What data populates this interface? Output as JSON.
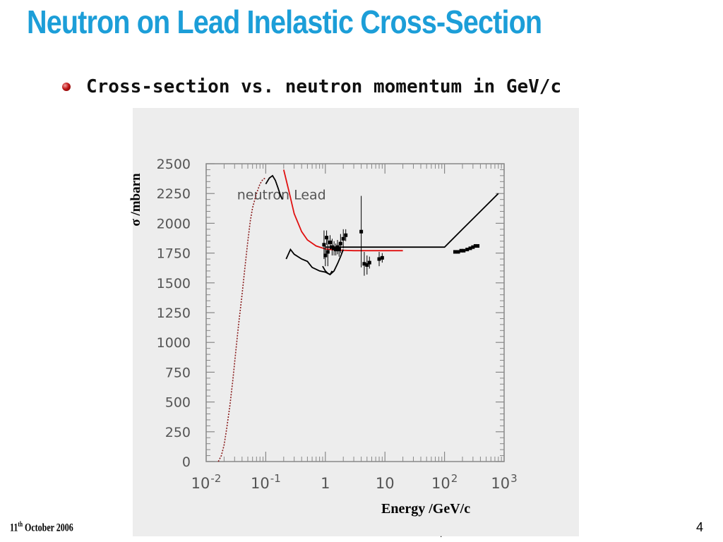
{
  "slide": {
    "title": "Neutron on Lead Inelastic Cross-Section",
    "bullet": "Cross-section vs. neutron momentum in GeV/c",
    "footer_day": "11",
    "footer_suffix": "th",
    "footer_rest": " October 2006",
    "page_number": "4",
    "stray_mark": "."
  },
  "chart_data": {
    "type": "line",
    "ylabel": "σ /mbarn",
    "xlabel": "Energy /GeV/c",
    "annotation": "neutron Lead",
    "x_scale": "log",
    "xlim": [
      0.01,
      1000
    ],
    "ylim": [
      0,
      2500
    ],
    "y_ticks": [
      "0",
      "250",
      "500",
      "750",
      "1000",
      "1250",
      "1500",
      "1750",
      "2000",
      "2250",
      "2500"
    ],
    "y_tick_values": [
      0,
      250,
      500,
      750,
      1000,
      1250,
      1500,
      1750,
      2000,
      2250,
      2500
    ],
    "x_ticks": [
      {
        "value": 0.01,
        "base": "10",
        "exp": "-2"
      },
      {
        "value": 0.1,
        "base": "10",
        "exp": "-1"
      },
      {
        "value": 1,
        "base": "1",
        "exp": ""
      },
      {
        "value": 10,
        "base": "10",
        "exp": ""
      },
      {
        "value": 100,
        "base": "10",
        "exp": "2"
      },
      {
        "value": 1000,
        "base": "10",
        "exp": "3"
      }
    ],
    "colors": {
      "red": "#e01010",
      "black": "#000000",
      "frame": "#888888",
      "tick_text": "#555555"
    },
    "series": [
      {
        "color": "#8a1c1c",
        "dashed": true,
        "points": [
          [
            0.016,
            0
          ],
          [
            0.018,
            50
          ],
          [
            0.02,
            140
          ],
          [
            0.022,
            270
          ],
          [
            0.025,
            470
          ],
          [
            0.028,
            680
          ],
          [
            0.031,
            900
          ],
          [
            0.035,
            1150
          ],
          [
            0.04,
            1400
          ],
          [
            0.045,
            1640
          ],
          [
            0.05,
            1850
          ],
          [
            0.055,
            2020
          ],
          [
            0.06,
            2130
          ],
          [
            0.07,
            2250
          ],
          [
            0.08,
            2330
          ],
          [
            0.09,
            2370
          ],
          [
            0.1,
            2380
          ]
        ]
      },
      {
        "color": "#000000",
        "dashed": false,
        "points": [
          [
            0.1,
            2330
          ],
          [
            0.115,
            2380
          ],
          [
            0.13,
            2400
          ],
          [
            0.145,
            2360
          ],
          [
            0.16,
            2300
          ],
          [
            0.175,
            2240
          ],
          [
            0.19,
            2200
          ]
        ]
      },
      {
        "color": "#e01010",
        "dashed": false,
        "points": [
          [
            0.2,
            2450
          ],
          [
            0.25,
            2250
          ],
          [
            0.3,
            2080
          ],
          [
            0.4,
            1930
          ],
          [
            0.5,
            1860
          ],
          [
            0.7,
            1810
          ],
          [
            1,
            1785
          ],
          [
            1.5,
            1775
          ],
          [
            3,
            1770
          ],
          [
            10,
            1770
          ],
          [
            20,
            1770
          ]
        ]
      },
      {
        "color": "#000000",
        "dashed": false,
        "points": [
          [
            0.22,
            1700
          ],
          [
            0.26,
            1780
          ],
          [
            0.3,
            1740
          ],
          [
            0.4,
            1700
          ],
          [
            0.5,
            1680
          ],
          [
            0.6,
            1630
          ],
          [
            0.8,
            1600
          ],
          [
            1,
            1590
          ],
          [
            1.2,
            1570
          ],
          [
            1.4,
            1600
          ],
          [
            1.6,
            1660
          ],
          [
            1.8,
            1720
          ],
          [
            2,
            1780
          ]
        ]
      },
      {
        "color": "#000000",
        "dashed": false,
        "points": [
          [
            1,
            1800
          ],
          [
            100,
            1800
          ],
          [
            200,
            1950
          ],
          [
            400,
            2100
          ],
          [
            800,
            2250
          ]
        ]
      },
      {
        "color": "#000000",
        "dashed": false,
        "points": [
          [
            0.9,
            1640
          ],
          [
            1,
            1600
          ],
          [
            1.1,
            1580
          ],
          [
            1.2,
            1570
          ],
          [
            1.3,
            1600
          ]
        ]
      }
    ],
    "data_points": [
      {
        "x": 0.95,
        "y": 1820,
        "err": 120
      },
      {
        "x": 1.0,
        "y": 1730,
        "err": 90
      },
      {
        "x": 1.05,
        "y": 1880,
        "err": 60
      },
      {
        "x": 1.1,
        "y": 1760,
        "err": 120
      },
      {
        "x": 1.2,
        "y": 1840,
        "err": 60
      },
      {
        "x": 1.3,
        "y": 1800,
        "err": 70
      },
      {
        "x": 1.4,
        "y": 1790,
        "err": 60
      },
      {
        "x": 1.5,
        "y": 1780,
        "err": 50
      },
      {
        "x": 1.6,
        "y": 1800,
        "err": 60
      },
      {
        "x": 1.7,
        "y": 1780,
        "err": 60
      },
      {
        "x": 1.8,
        "y": 1830,
        "err": 80
      },
      {
        "x": 2.0,
        "y": 1870,
        "err": 80
      },
      {
        "x": 2.2,
        "y": 1900,
        "err": 50
      },
      {
        "x": 4.0,
        "y": 1930,
        "err": 300
      },
      {
        "x": 4.5,
        "y": 1660,
        "err": 100
      },
      {
        "x": 5.0,
        "y": 1650,
        "err": 80
      },
      {
        "x": 5.5,
        "y": 1670,
        "err": 50
      },
      {
        "x": 8.0,
        "y": 1700,
        "err": 60
      },
      {
        "x": 9.0,
        "y": 1710,
        "err": 40
      },
      {
        "x": 150,
        "y": 1760,
        "err": 0
      },
      {
        "x": 170,
        "y": 1760,
        "err": 0
      },
      {
        "x": 190,
        "y": 1770,
        "err": 0
      },
      {
        "x": 210,
        "y": 1770,
        "err": 0
      },
      {
        "x": 240,
        "y": 1780,
        "err": 0
      },
      {
        "x": 270,
        "y": 1790,
        "err": 0
      },
      {
        "x": 300,
        "y": 1800,
        "err": 0
      },
      {
        "x": 330,
        "y": 1810,
        "err": 0
      },
      {
        "x": 360,
        "y": 1810,
        "err": 0
      }
    ]
  }
}
